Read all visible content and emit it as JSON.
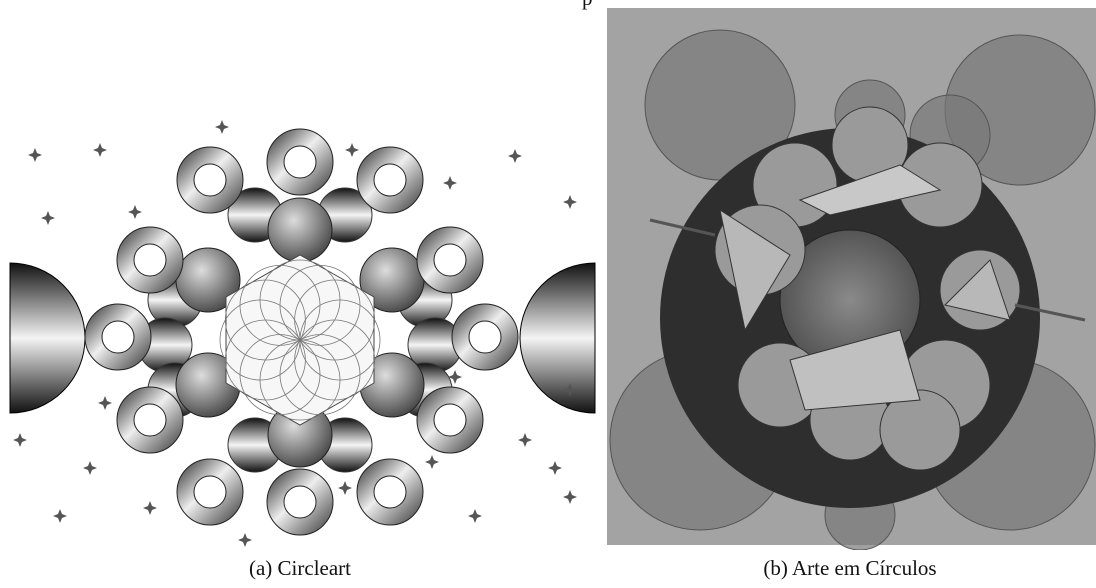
{
  "top_fragment": "p",
  "figures": [
    {
      "caption": "(a) Circleart"
    },
    {
      "caption": "(b) Arte em Círculos"
    }
  ]
}
